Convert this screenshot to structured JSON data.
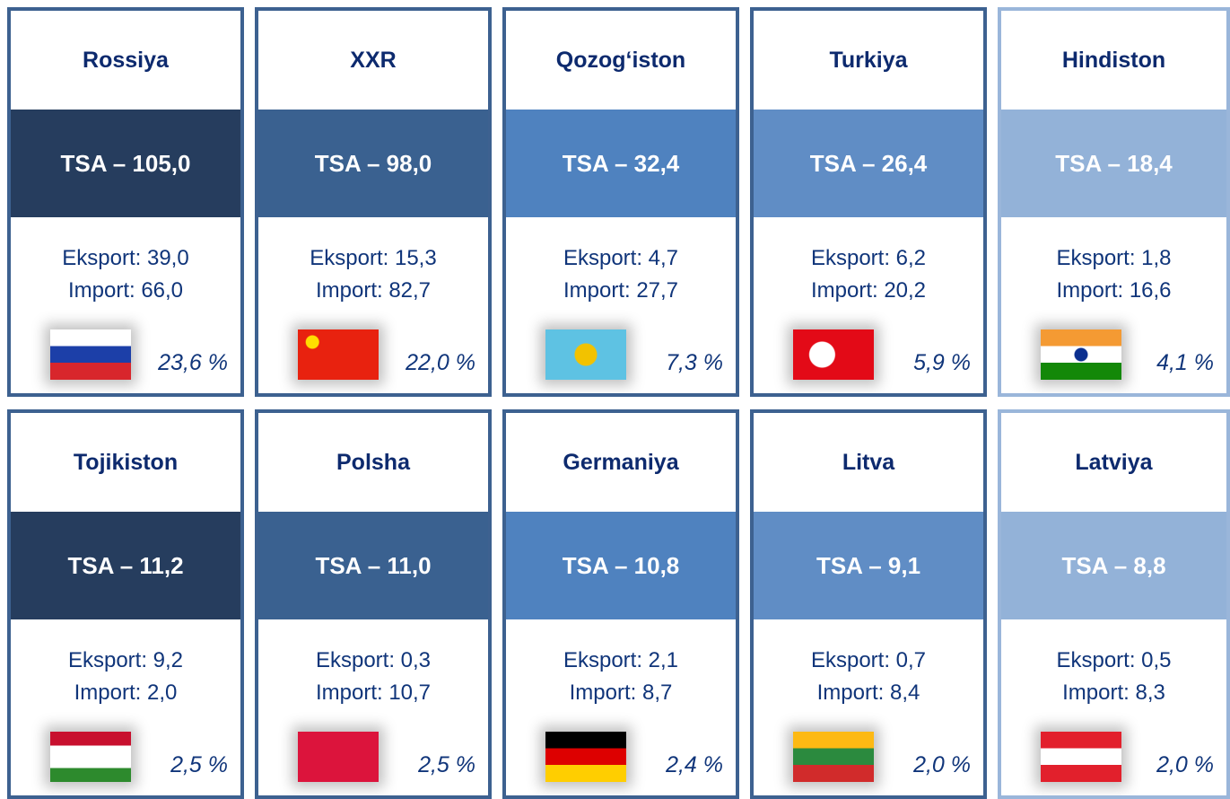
{
  "cards": [
    {
      "name": "Rossiya",
      "tsa": "TSA – 105,0",
      "export": "Eksport: 39,0",
      "import": "Import: 66,0",
      "share": "23,6 %"
    },
    {
      "name": "XXR",
      "tsa": "TSA – 98,0",
      "export": "Eksport: 15,3",
      "import": "Import: 82,7",
      "share": "22,0 %"
    },
    {
      "name": "Qozog‘iston",
      "tsa": "TSA – 32,4",
      "export": "Eksport: 4,7",
      "import": "Import: 27,7",
      "share": "7,3 %"
    },
    {
      "name": "Turkiya",
      "tsa": "TSA – 26,4",
      "export": "Eksport: 6,2",
      "import": "Import: 20,2",
      "share": "5,9 %"
    },
    {
      "name": "Hindiston",
      "tsa": "TSA – 18,4",
      "export": "Eksport: 1,8",
      "import": "Import: 16,6",
      "share": "4,1 %"
    },
    {
      "name": "Tojikiston",
      "tsa": "TSA – 11,2",
      "export": "Eksport: 9,2",
      "import": "Import: 2,0",
      "share": "2,5 %"
    },
    {
      "name": "Polsha",
      "tsa": "TSA – 11,0",
      "export": "Eksport: 0,3",
      "import": "Import: 10,7",
      "share": "2,5 %"
    },
    {
      "name": "Germaniya",
      "tsa": "TSA –  10,8",
      "export": "Eksport: 2,1",
      "import": "Import: 8,7",
      "share": "2,4 %"
    },
    {
      "name": "Litva",
      "tsa": "TSA – 9,1",
      "export": "Eksport: 0,7",
      "import": "Import: 8,4",
      "share": "2,0 %"
    },
    {
      "name": "Latviya",
      "tsa": "TSA – 8,8",
      "export": "Eksport: 0,5",
      "import": "Import: 8,3",
      "share": "2,0 %"
    }
  ]
}
